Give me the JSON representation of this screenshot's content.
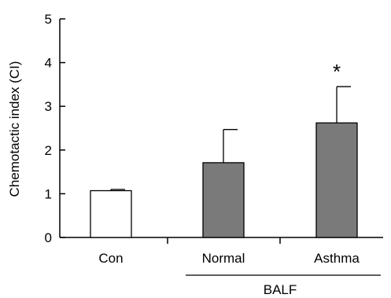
{
  "chart_data": {
    "type": "bar",
    "title": "",
    "xlabel": "",
    "ylabel": "Chemotactic index (CI)",
    "ylim": [
      0,
      5
    ],
    "yticks": [
      0,
      1,
      2,
      3,
      4,
      5
    ],
    "grid": false,
    "legend": "none",
    "categories": [
      "Con",
      "Normal",
      "Asthma"
    ],
    "values": [
      1.07,
      1.71,
      2.62
    ],
    "errors": [
      0.03,
      0.76,
      0.83
    ],
    "bar_colors": [
      "#ffffff",
      "#7a7a7a",
      "#7a7a7a"
    ],
    "significance": [
      "",
      "",
      "*"
    ],
    "group_label": {
      "text": "BALF",
      "categories": [
        "Normal",
        "Asthma"
      ]
    }
  }
}
